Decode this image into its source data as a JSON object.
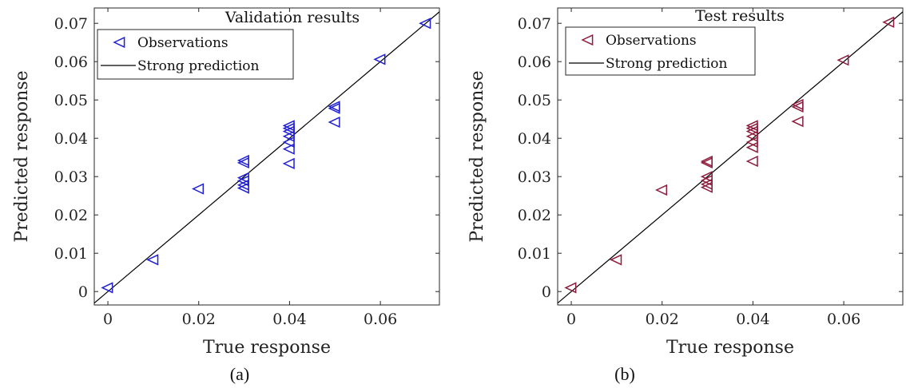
{
  "chart_data": [
    {
      "type": "scatter",
      "panel_label": "(a)",
      "title": "Validation results",
      "xlabel": "True response",
      "ylabel": "Predicted response",
      "xlim": [
        -0.003,
        0.073
      ],
      "ylim": [
        -0.0035,
        0.074
      ],
      "xticks": [
        0,
        0.02,
        0.04,
        0.06
      ],
      "xtick_labels": [
        "0",
        "0.02",
        "0.04",
        "0.06"
      ],
      "yticks": [
        0,
        0.01,
        0.02,
        0.03,
        0.04,
        0.05,
        0.06,
        0.07
      ],
      "ytick_labels": [
        "0",
        "0.01",
        "0.02",
        "0.03",
        "0.04",
        "0.05",
        "0.06",
        "0.07"
      ],
      "grid": false,
      "legend_position": "top-left",
      "series": [
        {
          "name": "Observations",
          "marker": "triangle-left",
          "color": "#1f1fd6",
          "points": [
            [
              0,
              0.001
            ],
            [
              0.01,
              0.0083
            ],
            [
              0.02,
              0.0268
            ],
            [
              0.03,
              0.0336
            ],
            [
              0.03,
              0.0342
            ],
            [
              0.03,
              0.0297
            ],
            [
              0.03,
              0.0289
            ],
            [
              0.03,
              0.0278
            ],
            [
              0.03,
              0.027
            ],
            [
              0.04,
              0.0433
            ],
            [
              0.04,
              0.0426
            ],
            [
              0.04,
              0.0418
            ],
            [
              0.04,
              0.0405
            ],
            [
              0.04,
              0.039
            ],
            [
              0.04,
              0.0372
            ],
            [
              0.04,
              0.0334
            ],
            [
              0.05,
              0.0483
            ],
            [
              0.05,
              0.0478
            ],
            [
              0.05,
              0.0442
            ],
            [
              0.06,
              0.0606
            ],
            [
              0.07,
              0.07
            ]
          ]
        },
        {
          "name": "Strong prediction",
          "line": "y = x",
          "color": "#000000"
        }
      ]
    },
    {
      "type": "scatter",
      "panel_label": "(b)",
      "title": "Test results",
      "xlabel": "True response",
      "ylabel": "Predicted response",
      "xlim": [
        -0.003,
        0.073
      ],
      "ylim": [
        -0.0035,
        0.074
      ],
      "xticks": [
        0,
        0.02,
        0.04,
        0.06
      ],
      "xtick_labels": [
        "0",
        "0.02",
        "0.04",
        "0.06"
      ],
      "yticks": [
        0,
        0.01,
        0.02,
        0.03,
        0.04,
        0.05,
        0.06,
        0.07
      ],
      "ytick_labels": [
        "0",
        "0.01",
        "0.02",
        "0.03",
        "0.04",
        "0.05",
        "0.06",
        "0.07"
      ],
      "grid": false,
      "legend_position": "top-left",
      "series": [
        {
          "name": "Observations",
          "marker": "triangle-left",
          "color": "#8e1b3c",
          "points": [
            [
              0,
              0.001
            ],
            [
              0.01,
              0.0083
            ],
            [
              0.02,
              0.0265
            ],
            [
              0.03,
              0.0336
            ],
            [
              0.03,
              0.034
            ],
            [
              0.03,
              0.03
            ],
            [
              0.03,
              0.029
            ],
            [
              0.03,
              0.028
            ],
            [
              0.03,
              0.0272
            ],
            [
              0.04,
              0.0433
            ],
            [
              0.04,
              0.0426
            ],
            [
              0.04,
              0.0418
            ],
            [
              0.04,
              0.0405
            ],
            [
              0.04,
              0.039
            ],
            [
              0.04,
              0.0376
            ],
            [
              0.04,
              0.034
            ],
            [
              0.05,
              0.0488
            ],
            [
              0.05,
              0.0482
            ],
            [
              0.05,
              0.0444
            ],
            [
              0.06,
              0.0604
            ],
            [
              0.07,
              0.0703
            ]
          ]
        },
        {
          "name": "Strong prediction",
          "line": "y = x",
          "color": "#000000"
        }
      ]
    }
  ]
}
